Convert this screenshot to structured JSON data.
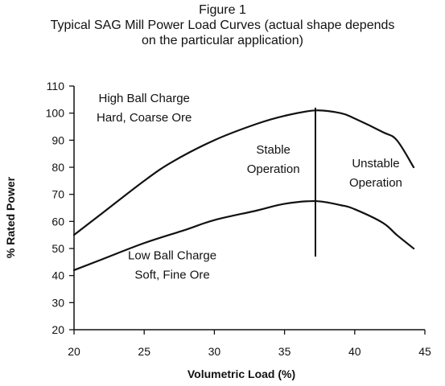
{
  "figure": {
    "label": "Figure 1",
    "title_line1": "Typical SAG Mill Power Load Curves (actual shape depends",
    "title_line2": "on the particular application)"
  },
  "chart_data": {
    "type": "line",
    "xlabel": "Volumetric Load (%)",
    "ylabel": "% Rated Power",
    "xlim": [
      20,
      45
    ],
    "ylim": [
      20,
      110
    ],
    "xticks": [
      20,
      25,
      30,
      35,
      40,
      45
    ],
    "yticks": [
      20,
      30,
      40,
      50,
      60,
      70,
      80,
      90,
      100,
      110
    ],
    "grid": false,
    "series": [
      {
        "x": [
          20,
          22,
          25,
          27,
          30,
          33,
          35,
          37.2,
          39,
          40,
          42,
          43,
          44.2
        ],
        "y": [
          55,
          63,
          75,
          82,
          90,
          96,
          99,
          101,
          100,
          98,
          93,
          90,
          80
        ],
        "color": "#111111"
      },
      {
        "x": [
          20,
          22,
          25,
          28,
          30,
          33,
          35,
          37.2,
          39,
          40,
          42,
          43,
          44.2
        ],
        "y": [
          42,
          46,
          52,
          57,
          60.5,
          64,
          66.5,
          67.5,
          66,
          64.5,
          59.5,
          55,
          50
        ],
        "color": "#111111"
      }
    ],
    "vline": {
      "x": 37.2,
      "y_from": 47,
      "y_to": 102
    },
    "annotations": [
      {
        "lines": [
          "High Ball Charge",
          "Hard, Coarse Ore"
        ],
        "x": 25,
        "y": 104
      },
      {
        "lines": [
          "Stable",
          "Operation"
        ],
        "x": 34.2,
        "y": 85
      },
      {
        "lines": [
          "Unstable",
          "Operation"
        ],
        "x": 41.5,
        "y": 80
      },
      {
        "lines": [
          "Low Ball Charge",
          "Soft, Fine Ore"
        ],
        "x": 27,
        "y": 46
      }
    ]
  }
}
